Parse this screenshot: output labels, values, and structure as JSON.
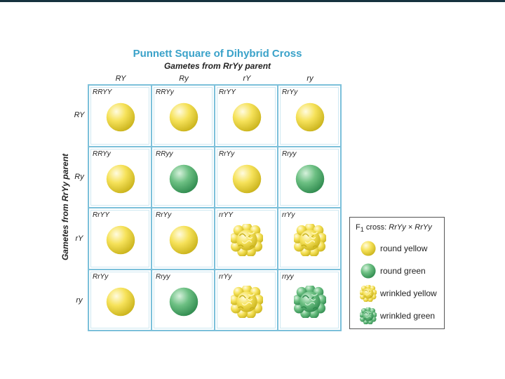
{
  "title": "Punnett Square of Dihybrid Cross",
  "subtitle": "Gametes from RrYy parent",
  "side_label": "Gametes from RrYy parent",
  "col_headers": [
    "RY",
    "Ry",
    "rY",
    "ry"
  ],
  "row_headers": [
    "RY",
    "Ry",
    "rY",
    "ry"
  ],
  "cells": [
    [
      "RRYY",
      "RRYy",
      "RrYY",
      "RrYy"
    ],
    [
      "RRYy",
      "RRyy",
      "RrYy",
      "Rryy"
    ],
    [
      "RrYY",
      "RrYy",
      "rrYY",
      "rrYy"
    ],
    [
      "RrYy",
      "Rryy",
      "rrYy",
      "rryy"
    ]
  ],
  "phenotypes": [
    [
      "round-yellow",
      "round-yellow",
      "round-yellow",
      "round-yellow"
    ],
    [
      "round-yellow",
      "round-green",
      "round-yellow",
      "round-green"
    ],
    [
      "round-yellow",
      "round-yellow",
      "wrinkled-yellow",
      "wrinkled-yellow"
    ],
    [
      "round-yellow",
      "round-green",
      "wrinkled-yellow",
      "wrinkled-green"
    ]
  ],
  "legend": {
    "title_prefix": "F",
    "title_sub": "1",
    "title_text": " cross: ",
    "title_cross": "RrYy × RrYy",
    "items": [
      {
        "label": "round yellow",
        "type": "round-yellow"
      },
      {
        "label": "round green",
        "type": "round-green"
      },
      {
        "label": "wrinkled yellow",
        "type": "wrinkled-yellow"
      },
      {
        "label": "wrinkled green",
        "type": "wrinkled-green"
      }
    ]
  },
  "colors": {
    "title": "#3aa2c9",
    "grid_border": "#7cc0da",
    "yellow_light": "#fffbe0",
    "yellow_mid": "#f6e25a",
    "yellow_dark": "#c9b21a",
    "green_light": "#d6f1dc",
    "green_mid": "#6dc083",
    "green_dark": "#2f8a4e"
  }
}
